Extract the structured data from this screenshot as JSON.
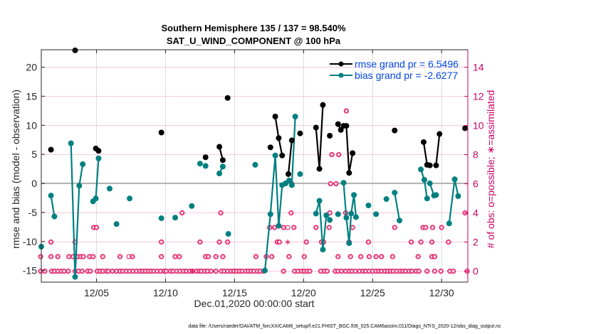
{
  "chart_data": {
    "type": "line",
    "title": "Southern Hemisphere 135 / 137 = 98.540%",
    "subtitle": "SAT_U_WIND_COMPONENT @ 100 hPa",
    "xlabel": "Dec.01,2020 00:00:00 start",
    "ylabel": "rmse and bias (model - observation)",
    "y2label": "# of obs: o=possible; ∗=assimilated",
    "footer": "data file: /Users/raeder/DAI/ATM_forcXX/CAM6_setup/f.e21.FHIST_BGC.f09_025.CAM6assim.011/Diags_NTrS_2020-12/obs_diag_output.nc",
    "x_unit": "days since Dec.01,2020 00:00",
    "xlim": [
      0.0,
      30.9
    ],
    "ylim": [
      -17,
      23
    ],
    "y2lim": [
      -0.75,
      15.2
    ],
    "xticks": [
      {
        "value": 4,
        "label": "12/05"
      },
      {
        "value": 9,
        "label": "12/10"
      },
      {
        "value": 14,
        "label": "12/15"
      },
      {
        "value": 19,
        "label": "12/20"
      },
      {
        "value": 24,
        "label": "12/25"
      },
      {
        "value": 29,
        "label": "12/30"
      }
    ],
    "yticks": [
      {
        "value": -15,
        "label": "-15"
      },
      {
        "value": -10,
        "label": "-10"
      },
      {
        "value": -5,
        "label": "-5"
      },
      {
        "value": 0,
        "label": "0"
      },
      {
        "value": 5,
        "label": "5"
      },
      {
        "value": 10,
        "label": "10"
      },
      {
        "value": 15,
        "label": "15"
      },
      {
        "value": 20,
        "label": "20"
      }
    ],
    "y2ticks": [
      {
        "value": 0,
        "label": "0"
      },
      {
        "value": 2,
        "label": "2"
      },
      {
        "value": 4,
        "label": "4"
      },
      {
        "value": 6,
        "label": "6"
      },
      {
        "value": 8,
        "label": "8"
      },
      {
        "value": 10,
        "label": "10"
      },
      {
        "value": 12,
        "label": "12"
      },
      {
        "value": 14,
        "label": "14"
      }
    ],
    "grid": true,
    "zero_line": true,
    "legend": {
      "position": "top-right",
      "entries": [
        {
          "name": "rmse",
          "label": "rmse grand pr = 6.5496",
          "color": "#000000"
        },
        {
          "name": "bias",
          "label": "bias grand pr = -2.6277",
          "color": "#008080"
        }
      ]
    },
    "colors": {
      "rmse": "#000000",
      "bias": "#008080",
      "obs": "#e0115f",
      "axis2": "#cc0066",
      "grid": "#f2c6d9",
      "zero": "#b3b3b3"
    },
    "series": [
      {
        "name": "rmse",
        "segments": [
          [
            [
              0.7,
              5.8
            ]
          ],
          [
            [
              2.45,
              22.9
            ]
          ],
          [
            [
              3.95,
              6.0
            ],
            [
              4.15,
              5.6
            ]
          ],
          [
            [
              8.7,
              8.75
            ]
          ],
          [
            [
              11.9,
              4.5
            ]
          ],
          [
            [
              12.9,
              6.3
            ],
            [
              13.15,
              4.0
            ]
          ],
          [
            [
              13.5,
              14.7
            ]
          ],
          [
            [
              16.6,
              6.2
            ]
          ],
          [
            [
              16.95,
              11.5
            ],
            [
              17.2,
              7.8
            ],
            [
              17.45,
              4.8
            ]
          ],
          [
            [
              17.9,
              1.6
            ],
            [
              18.15,
              7.4
            ]
          ],
          [
            [
              18.75,
              8.6
            ]
          ],
          [
            [
              19.9,
              9.6
            ],
            [
              20.15,
              2.5
            ],
            [
              20.4,
              13.5
            ]
          ],
          [
            [
              20.9,
              8.2
            ]
          ],
          [
            [
              21.5,
              10.2
            ],
            [
              21.7,
              9.2
            ],
            [
              21.9,
              9.9
            ],
            [
              22.1,
              9.9
            ],
            [
              22.3,
              1.8
            ],
            [
              22.55,
              5.2
            ]
          ],
          [
            [
              25.6,
              9.1
            ]
          ],
          [
            [
              27.7,
              7.1
            ],
            [
              27.95,
              3.2
            ],
            [
              28.15,
              3.1
            ]
          ],
          [
            [
              28.6,
              3.1
            ],
            [
              28.85,
              8.5
            ]
          ],
          [
            [
              30.7,
              9.5
            ]
          ]
        ]
      },
      {
        "name": "bias",
        "segments": [
          [
            [
              0.0,
              -10.9
            ]
          ],
          [
            [
              0.7,
              -2.1
            ],
            [
              0.95,
              -5.7
            ]
          ],
          [
            [
              2.15,
              6.9
            ],
            [
              2.45,
              -16.1
            ],
            [
              2.75,
              -0.4
            ],
            [
              3.0,
              3.3
            ]
          ],
          [
            [
              3.75,
              -3.1
            ]
          ],
          [
            [
              3.95,
              -2.6
            ],
            [
              4.15,
              4.3
            ]
          ],
          [
            [
              4.95,
              -0.9
            ]
          ],
          [
            [
              5.45,
              -7.0
            ]
          ],
          [
            [
              6.4,
              -2.6
            ]
          ],
          [
            [
              8.7,
              -6.0
            ]
          ],
          [
            [
              9.7,
              -5.9
            ]
          ],
          [
            [
              10.9,
              -3.9
            ]
          ],
          [
            [
              11.5,
              3.4
            ]
          ],
          [
            [
              11.9,
              3.0
            ]
          ],
          [
            [
              12.9,
              1.7
            ],
            [
              13.15,
              2.9
            ]
          ],
          [
            [
              13.55,
              -8.7
            ]
          ],
          [
            [
              15.5,
              3.2
            ]
          ],
          [
            [
              16.2,
              -15.0
            ],
            [
              16.6,
              -5.3
            ],
            [
              16.95,
              4.8
            ],
            [
              17.2,
              -7.3
            ],
            [
              17.45,
              -0.3
            ],
            [
              17.7,
              0.0
            ],
            [
              17.95,
              0.5
            ],
            [
              18.15,
              -0.3
            ],
            [
              18.4,
              11.5
            ]
          ],
          [
            [
              18.75,
              1.6
            ]
          ],
          [
            [
              19.9,
              -5.2
            ],
            [
              20.15,
              -3.0
            ],
            [
              20.4,
              -11.4
            ],
            [
              20.65,
              -5.5
            ],
            [
              20.9,
              -6.3
            ]
          ],
          [
            [
              21.5,
              -5.3
            ]
          ],
          [
            [
              21.9,
              0.1
            ],
            [
              22.1,
              -5.9
            ],
            [
              22.3,
              -10.3
            ],
            [
              22.45,
              -5.2
            ],
            [
              22.65,
              -2.0
            ],
            [
              22.8,
              -5.8
            ]
          ],
          [
            [
              23.7,
              -3.8
            ]
          ],
          [
            [
              24.25,
              -5.3
            ]
          ],
          [
            [
              25.0,
              -2.7
            ]
          ],
          [
            [
              25.6,
              -1.6
            ],
            [
              25.95,
              -6.4
            ]
          ],
          [
            [
              27.5,
              2.4
            ],
            [
              27.75,
              0.6
            ],
            [
              27.95,
              -2.6
            ]
          ],
          [
            [
              28.15,
              0.0
            ],
            [
              28.45,
              -2.1
            ],
            [
              28.6,
              -2.0
            ]
          ],
          [
            [
              29.55,
              -6.9
            ],
            [
              29.95,
              0.7
            ],
            [
              30.2,
              -2.2
            ]
          ]
        ]
      }
    ],
    "obs_assimilated": [
      [
        -0.05,
        0
      ],
      [
        0.25,
        0
      ],
      [
        0.75,
        0
      ],
      [
        0.95,
        0
      ],
      [
        1.2,
        0
      ],
      [
        1.45,
        0
      ],
      [
        1.65,
        0
      ],
      [
        1.95,
        0
      ],
      [
        2.45,
        0
      ],
      [
        2.7,
        0
      ],
      [
        2.95,
        0
      ],
      [
        3.35,
        0
      ],
      [
        3.55,
        0
      ],
      [
        4.05,
        0
      ],
      [
        4.25,
        0
      ],
      [
        4.45,
        0
      ],
      [
        4.7,
        0
      ],
      [
        4.85,
        0
      ],
      [
        5.15,
        0
      ],
      [
        5.45,
        0
      ],
      [
        5.7,
        0
      ],
      [
        5.9,
        0
      ],
      [
        6.15,
        0
      ],
      [
        6.4,
        0
      ],
      [
        6.65,
        0
      ],
      [
        6.9,
        0
      ],
      [
        7.15,
        0
      ],
      [
        7.35,
        0
      ],
      [
        7.55,
        0
      ],
      [
        7.75,
        0
      ],
      [
        7.95,
        0
      ],
      [
        8.15,
        0
      ],
      [
        8.4,
        0
      ],
      [
        8.65,
        0
      ],
      [
        8.9,
        0
      ],
      [
        9.05,
        0
      ],
      [
        9.35,
        0
      ],
      [
        9.55,
        0
      ],
      [
        9.8,
        0
      ],
      [
        10.05,
        0
      ],
      [
        10.3,
        0
      ],
      [
        10.5,
        0
      ],
      [
        10.75,
        0
      ],
      [
        10.95,
        0
      ],
      [
        11.25,
        0
      ],
      [
        11.45,
        0
      ],
      [
        11.6,
        0
      ],
      [
        11.85,
        0
      ],
      [
        12.05,
        0
      ],
      [
        12.3,
        0
      ],
      [
        12.65,
        0
      ],
      [
        13.05,
        0
      ],
      [
        13.25,
        0
      ],
      [
        13.5,
        0
      ],
      [
        13.75,
        0
      ],
      [
        13.95,
        0
      ],
      [
        14.15,
        0
      ],
      [
        14.35,
        0
      ],
      [
        14.55,
        0
      ],
      [
        14.8,
        0
      ],
      [
        15.0,
        0
      ],
      [
        15.2,
        0
      ],
      [
        15.4,
        0
      ],
      [
        15.65,
        0
      ],
      [
        15.85,
        0
      ],
      [
        16.1,
        0
      ],
      [
        17.55,
        0
      ],
      [
        18.35,
        0
      ],
      [
        18.6,
        0
      ],
      [
        18.85,
        0
      ],
      [
        19.05,
        0
      ],
      [
        19.25,
        0
      ],
      [
        19.45,
        0
      ],
      [
        20.25,
        0
      ],
      [
        20.5,
        0
      ],
      [
        20.7,
        0
      ],
      [
        21.3,
        0
      ],
      [
        21.5,
        0
      ],
      [
        21.75,
        0
      ],
      [
        22.05,
        0
      ],
      [
        22.3,
        0
      ],
      [
        22.5,
        0
      ],
      [
        22.75,
        0
      ],
      [
        23.05,
        0
      ],
      [
        23.3,
        0
      ],
      [
        23.5,
        0
      ],
      [
        23.75,
        0
      ],
      [
        24.0,
        0
      ],
      [
        24.25,
        0
      ],
      [
        24.45,
        0
      ],
      [
        24.65,
        0
      ],
      [
        24.9,
        0
      ],
      [
        25.1,
        0
      ],
      [
        25.3,
        0
      ],
      [
        25.5,
        0
      ],
      [
        25.75,
        0
      ],
      [
        26.0,
        0
      ],
      [
        26.2,
        0
      ],
      [
        26.4,
        0
      ],
      [
        26.65,
        0
      ],
      [
        26.85,
        0
      ],
      [
        27.15,
        0
      ],
      [
        27.35,
        0
      ],
      [
        27.95,
        0
      ],
      [
        28.5,
        0
      ],
      [
        28.95,
        0
      ],
      [
        29.6,
        0
      ],
      [
        29.85,
        0
      ],
      [
        30.85,
        0
      ],
      [
        -0.05,
        1
      ],
      [
        0.7,
        1
      ],
      [
        1.2,
        1
      ],
      [
        2.0,
        1
      ],
      [
        2.3,
        1
      ],
      [
        2.65,
        1
      ],
      [
        2.85,
        1
      ],
      [
        3.05,
        1
      ],
      [
        3.5,
        1
      ],
      [
        3.75,
        1
      ],
      [
        4.45,
        1
      ],
      [
        5.7,
        1
      ],
      [
        6.6,
        1
      ],
      [
        8.7,
        1
      ],
      [
        9.7,
        1
      ],
      [
        10.0,
        1
      ],
      [
        11.9,
        1
      ],
      [
        12.1,
        1
      ],
      [
        12.65,
        1
      ],
      [
        13.15,
        1
      ],
      [
        15.55,
        1
      ],
      [
        16.3,
        1
      ],
      [
        16.7,
        1
      ],
      [
        17.95,
        1
      ],
      [
        19.05,
        1
      ],
      [
        21.5,
        1
      ],
      [
        22.4,
        1
      ],
      [
        23.15,
        1
      ],
      [
        23.75,
        1
      ],
      [
        24.25,
        1
      ],
      [
        24.65,
        1
      ],
      [
        25.45,
        1
      ],
      [
        27.3,
        1
      ],
      [
        28.3,
        1
      ],
      [
        28.5,
        1
      ],
      [
        0.7,
        2
      ],
      [
        2.45,
        2
      ],
      [
        8.7,
        2
      ],
      [
        11.5,
        2
      ],
      [
        12.9,
        2
      ],
      [
        13.5,
        2
      ],
      [
        17.1,
        2
      ],
      [
        17.25,
        2
      ],
      [
        19.2,
        2
      ],
      [
        20.3,
        2
      ],
      [
        20.45,
        2
      ],
      [
        22.3,
        2
      ],
      [
        23.7,
        2
      ],
      [
        26.8,
        2
      ],
      [
        27.5,
        2
      ],
      [
        28.3,
        2
      ],
      [
        29.5,
        2
      ],
      [
        3.8,
        3
      ],
      [
        4.0,
        3
      ],
      [
        16.55,
        3
      ],
      [
        16.9,
        3
      ],
      [
        17.55,
        3
      ],
      [
        18.3,
        3
      ],
      [
        19.9,
        3
      ],
      [
        20.85,
        3
      ],
      [
        22.55,
        3
      ],
      [
        25.6,
        3
      ],
      [
        27.65,
        3
      ],
      [
        27.85,
        3
      ],
      [
        28.35,
        3
      ],
      [
        29.0,
        3
      ],
      [
        10.2,
        4
      ],
      [
        13.0,
        4
      ],
      [
        18.1,
        4
      ],
      [
        20.9,
        4
      ],
      [
        22.05,
        4
      ],
      [
        30.7,
        4
      ],
      [
        18.15,
        6
      ],
      [
        21.35,
        6
      ],
      [
        20.95,
        6
      ],
      [
        21.55,
        8
      ],
      [
        21.05,
        8
      ],
      [
        22.1,
        11
      ]
    ],
    "obs_possible_only": [
      [
        6.35,
        1
      ],
      [
        17.85,
        3
      ]
    ],
    "obs_assimilated_plain_star": [
      [
        10.95,
        0
      ],
      [
        17.85,
        2
      ]
    ]
  }
}
